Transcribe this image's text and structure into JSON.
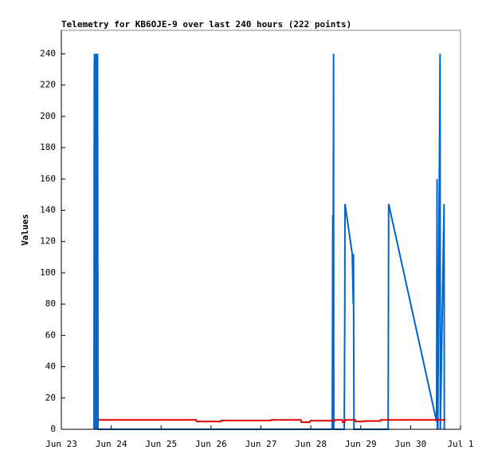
{
  "chart_data": {
    "type": "line",
    "title": "Telemetry for KB6OJE-9 over last 240 hours (222 points)",
    "ylabel": "Values",
    "xlim": [
      0,
      8
    ],
    "ylim": [
      0,
      255
    ],
    "xticks": [
      {
        "value": 0,
        "label": "Jun 23"
      },
      {
        "value": 1,
        "label": "Jun 24"
      },
      {
        "value": 2,
        "label": "Jun 25"
      },
      {
        "value": 3,
        "label": "Jun 26"
      },
      {
        "value": 4,
        "label": "Jun 27"
      },
      {
        "value": 5,
        "label": "Jun 28"
      },
      {
        "value": 6,
        "label": "Jun 29"
      },
      {
        "value": 7,
        "label": "Jun 30"
      },
      {
        "value": 8,
        "label": "Jul 1"
      }
    ],
    "yticks": [
      0,
      20,
      40,
      60,
      80,
      100,
      120,
      140,
      160,
      180,
      200,
      220,
      240
    ],
    "grid": false,
    "series": [
      {
        "color": "#0066cc",
        "x": [
          0.655,
          0.66,
          0.665,
          0.67,
          0.68,
          0.685,
          0.695,
          0.7,
          0.71,
          0.715,
          0.725,
          0.735,
          5.43,
          5.44,
          5.445,
          5.455,
          5.46,
          5.67,
          5.68,
          5.685,
          5.83,
          5.85,
          5.855,
          5.86,
          5.865,
          6.55,
          6.56,
          7.52,
          7.53,
          7.535,
          7.54,
          7.545,
          7.59,
          7.595,
          7.67,
          7.675
        ],
        "values": [
          0,
          232,
          240,
          0,
          240,
          0,
          240,
          0,
          240,
          0,
          240,
          0,
          0,
          137,
          0,
          240,
          0,
          0,
          72,
          144,
          112,
          80,
          112,
          48,
          0,
          0,
          144,
          5,
          160,
          0,
          80,
          0,
          240,
          0,
          144,
          0
        ]
      },
      {
        "color": "#e00000",
        "x": [
          0.735,
          2.7,
          2.71,
          3.2,
          3.21,
          4.2,
          4.21,
          4.8,
          4.81,
          4.98,
          4.99,
          5.48,
          5.49,
          5.63,
          5.64,
          5.68,
          5.69,
          5.89,
          5.9,
          6.05,
          6.06,
          6.39,
          6.4,
          7.7
        ],
        "values": [
          6,
          6,
          5,
          5,
          5.6,
          5.6,
          6,
          6,
          4.5,
          4.5,
          5.5,
          5.5,
          6,
          6,
          4.5,
          4.5,
          6,
          6,
          5,
          5,
          5.3,
          5.3,
          6,
          6
        ]
      }
    ]
  }
}
